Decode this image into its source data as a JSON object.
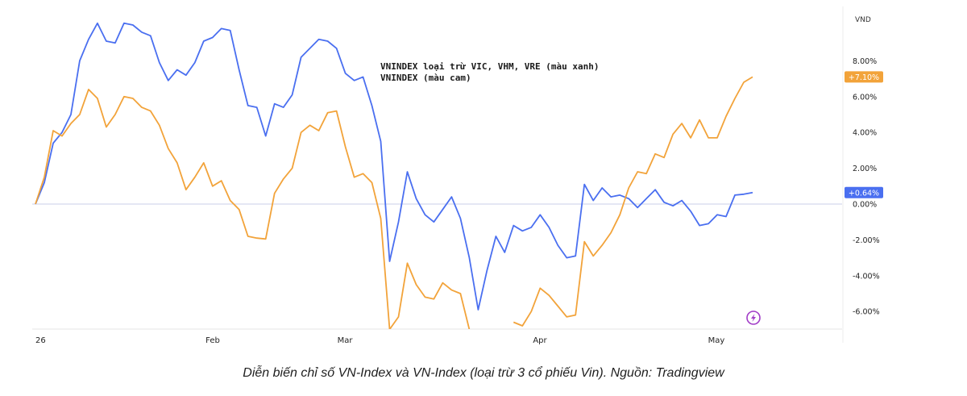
{
  "chart_data": {
    "type": "line",
    "unit_label": "VND",
    "legend": [
      "VNINDEX loại trừ VIC, VHM, VRE (màu xanh)",
      "VNINDEX (màu cam)"
    ],
    "x_tick_labels": [
      "26",
      "Feb",
      "Mar",
      "Apr",
      "May"
    ],
    "ylim": [
      -6.8,
      10.5
    ],
    "y_ticks": [
      {
        "value": 8,
        "label": "8.00%"
      },
      {
        "value": 6,
        "label": "6.00%"
      },
      {
        "value": 4,
        "label": "4.00%"
      },
      {
        "value": 2,
        "label": "2.00%"
      },
      {
        "value": 0,
        "label": "0.00%"
      },
      {
        "value": -2,
        "label": "-2.00%"
      },
      {
        "value": -4,
        "label": "-4.00%"
      },
      {
        "value": -6,
        "label": "-6.00%"
      }
    ],
    "last_value_labels": {
      "blue": "+0.64%",
      "orange": "+7.10%"
    },
    "colors": {
      "blue": "#4a6ff0",
      "orange": "#f2a33a",
      "zero_line": "#c9cfe8"
    },
    "series": [
      {
        "color": "blue",
        "values": [
          0.0,
          1.2,
          3.4,
          4.0,
          5.0,
          8.0,
          9.2,
          10.1,
          9.1,
          9.0,
          10.1,
          10.0,
          9.6,
          9.4,
          7.9,
          6.9,
          7.5,
          7.2,
          7.9,
          9.1,
          9.3,
          9.8,
          9.7,
          7.5,
          5.5,
          5.4,
          3.8,
          5.6,
          5.4,
          6.1,
          8.2,
          8.7,
          9.2,
          9.1,
          8.7,
          7.3,
          6.9,
          7.1,
          5.5,
          3.5,
          -3.2,
          -1.0,
          1.8,
          0.3,
          -0.6,
          -1.0,
          -0.3,
          0.4,
          -0.8,
          -3.0,
          -5.9,
          -3.7,
          -1.8,
          -2.7,
          -1.2,
          -1.5,
          -1.3,
          -0.6,
          -1.3,
          -2.3,
          -3.0,
          -2.9,
          1.1,
          0.2,
          0.9,
          0.4,
          0.5,
          0.3,
          -0.2,
          0.3,
          0.8,
          0.1,
          -0.1,
          0.2,
          -0.4,
          -1.2,
          -1.1,
          -0.6,
          -0.7,
          0.5,
          0.55,
          0.64
        ]
      },
      {
        "color": "orange",
        "values": [
          0.0,
          1.5,
          4.1,
          3.8,
          4.5,
          5.0,
          6.4,
          5.9,
          4.3,
          5.0,
          6.0,
          5.9,
          5.4,
          5.2,
          4.4,
          3.1,
          2.3,
          0.8,
          1.5,
          2.3,
          1.0,
          1.3,
          0.2,
          -0.3,
          -1.8,
          -1.9,
          -1.95,
          0.6,
          1.4,
          2.0,
          4.0,
          4.4,
          4.1,
          5.1,
          5.2,
          3.2,
          1.5,
          1.7,
          1.2,
          -0.8,
          -7.0,
          -6.3,
          -3.3,
          -4.5,
          -5.2,
          -5.3,
          -4.4,
          -4.8,
          -5.0,
          -7.0,
          null,
          null,
          null,
          null,
          -6.6,
          -6.8,
          -6.0,
          -4.7,
          -5.1,
          -5.7,
          -6.3,
          -6.2,
          -2.1,
          -2.9,
          -2.3,
          -1.6,
          -0.6,
          0.9,
          1.8,
          1.7,
          2.8,
          2.6,
          3.9,
          4.5,
          3.7,
          4.7,
          3.7,
          3.7,
          4.9,
          5.9,
          6.8,
          7.1
        ]
      }
    ],
    "caption": "Diễn biến chỉ số VN-Index và VN-Index (loại trừ 3 cổ phiếu Vin). Nguồn: Tradingview"
  }
}
